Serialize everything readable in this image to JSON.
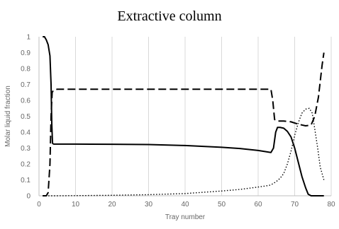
{
  "chart_data": {
    "type": "line",
    "title": "Extractive column",
    "xlabel": "Tray number",
    "ylabel": "Molar liquid fraction",
    "xlim": [
      0,
      80
    ],
    "ylim": [
      0,
      1
    ],
    "x_ticks": [
      "0",
      "10",
      "20",
      "30",
      "40",
      "50",
      "60",
      "70",
      "80"
    ],
    "y_ticks": [
      "0",
      "0.1",
      "0.2",
      "0.3",
      "0.4",
      "0.5",
      "0.6",
      "0.7",
      "0.8",
      "0.9",
      "1"
    ],
    "grid": "vertical",
    "legend": "none",
    "series": [
      {
        "style": "solid",
        "color": "#000000",
        "points": [
          [
            1,
            1
          ],
          [
            1.5,
            1
          ],
          [
            2,
            0.98
          ],
          [
            2.5,
            0.95
          ],
          [
            3,
            0.88
          ],
          [
            3.3,
            0.7
          ],
          [
            3.5,
            0.45
          ],
          [
            3.7,
            0.33
          ],
          [
            4,
            0.325
          ],
          [
            5,
            0.325
          ],
          [
            10,
            0.325
          ],
          [
            20,
            0.324
          ],
          [
            30,
            0.322
          ],
          [
            40,
            0.316
          ],
          [
            50,
            0.305
          ],
          [
            55,
            0.297
          ],
          [
            60,
            0.285
          ],
          [
            62,
            0.278
          ],
          [
            63.5,
            0.272
          ],
          [
            64.2,
            0.3
          ],
          [
            64.8,
            0.4
          ],
          [
            65.3,
            0.43
          ],
          [
            66,
            0.43
          ],
          [
            67,
            0.425
          ],
          [
            68,
            0.405
          ],
          [
            69,
            0.37
          ],
          [
            70,
            0.3
          ],
          [
            71,
            0.21
          ],
          [
            72,
            0.12
          ],
          [
            73,
            0.05
          ],
          [
            73.7,
            0.01
          ],
          [
            74.5,
            0
          ],
          [
            78,
            0
          ]
        ]
      },
      {
        "style": "dashed",
        "color": "#000000",
        "points": [
          [
            1,
            0
          ],
          [
            2,
            0
          ],
          [
            2.5,
            0.02
          ],
          [
            3,
            0.2
          ],
          [
            3.3,
            0.5
          ],
          [
            3.6,
            0.65
          ],
          [
            4,
            0.665
          ],
          [
            5,
            0.67
          ],
          [
            10,
            0.67
          ],
          [
            20,
            0.67
          ],
          [
            30,
            0.67
          ],
          [
            40,
            0.67
          ],
          [
            50,
            0.67
          ],
          [
            60,
            0.67
          ],
          [
            63.5,
            0.67
          ],
          [
            64,
            0.6
          ],
          [
            64.5,
            0.48
          ],
          [
            65,
            0.47
          ],
          [
            67,
            0.47
          ],
          [
            69,
            0.465
          ],
          [
            71,
            0.45
          ],
          [
            73,
            0.44
          ],
          [
            74.5,
            0.445
          ],
          [
            75.5,
            0.5
          ],
          [
            76.5,
            0.62
          ],
          [
            77.5,
            0.82
          ],
          [
            78,
            0.9
          ]
        ]
      },
      {
        "style": "dotted",
        "color": "#000000",
        "points": [
          [
            1,
            0
          ],
          [
            5,
            0
          ],
          [
            10,
            0.001
          ],
          [
            20,
            0.003
          ],
          [
            30,
            0.007
          ],
          [
            40,
            0.014
          ],
          [
            50,
            0.03
          ],
          [
            55,
            0.04
          ],
          [
            60,
            0.055
          ],
          [
            63,
            0.065
          ],
          [
            64,
            0.075
          ],
          [
            65,
            0.09
          ],
          [
            66,
            0.11
          ],
          [
            67,
            0.14
          ],
          [
            68,
            0.2
          ],
          [
            69,
            0.28
          ],
          [
            70,
            0.38
          ],
          [
            71,
            0.46
          ],
          [
            72,
            0.52
          ],
          [
            73,
            0.545
          ],
          [
            74,
            0.55
          ],
          [
            74.8,
            0.52
          ],
          [
            75.5,
            0.42
          ],
          [
            76.3,
            0.3
          ],
          [
            77,
            0.18
          ],
          [
            78,
            0.1
          ]
        ]
      }
    ]
  }
}
